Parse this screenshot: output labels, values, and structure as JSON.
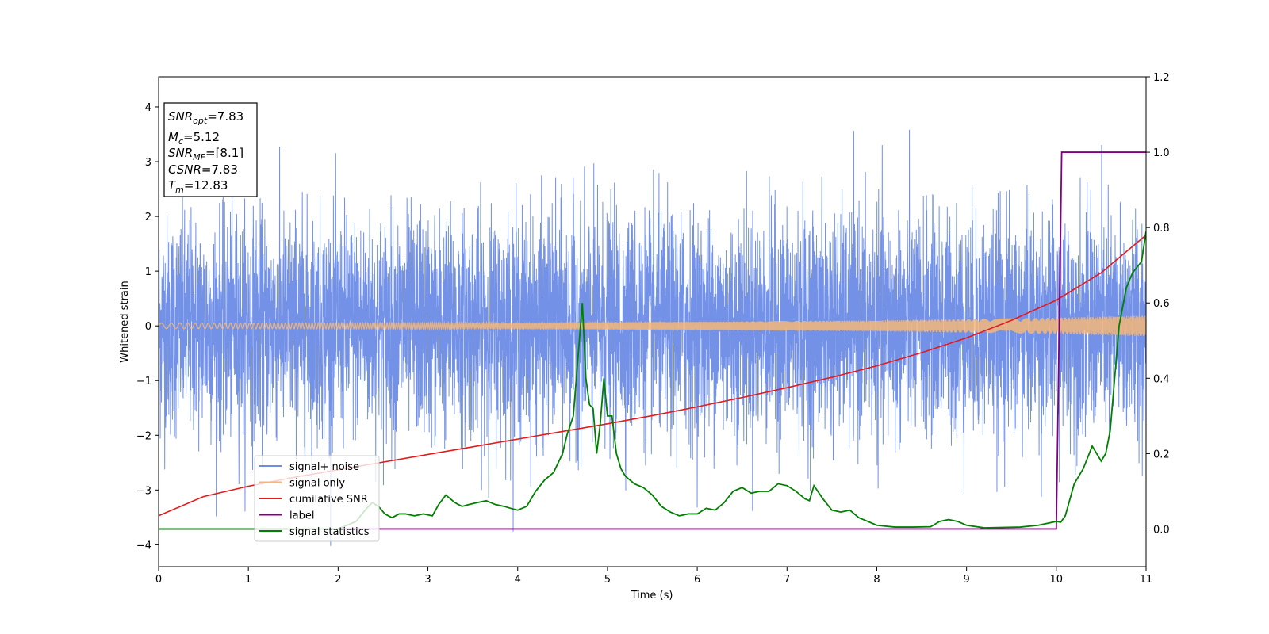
{
  "chart_data": {
    "type": "line",
    "title": "",
    "xlabel": "Time (s)",
    "ylabel": "Whitened strain",
    "y2label": "",
    "xlim": [
      0,
      11
    ],
    "ylim": [
      -4.4,
      4.55
    ],
    "y2lim": [
      -0.1,
      1.2
    ],
    "xticks": [
      0,
      1,
      2,
      3,
      4,
      5,
      6,
      7,
      8,
      9,
      10,
      11
    ],
    "yticks": [
      -4,
      -3,
      -2,
      -1,
      0,
      1,
      2,
      3,
      4
    ],
    "y2ticks": [
      0.0,
      0.2,
      0.4,
      0.6,
      0.8,
      1.0,
      1.2
    ],
    "xtick_labels": [
      "0",
      "1",
      "2",
      "3",
      "4",
      "5",
      "6",
      "7",
      "8",
      "9",
      "10",
      "11"
    ],
    "ytick_labels": [
      "−4",
      "−3",
      "−2",
      "−1",
      "0",
      "1",
      "2",
      "3",
      "4"
    ],
    "y2tick_labels": [
      "0.0",
      "0.2",
      "0.4",
      "0.6",
      "0.8",
      "1.0",
      "1.2"
    ],
    "grid": false,
    "legend_placement": "lower-left",
    "series": [
      {
        "name": "signal+ noise",
        "axis": "left",
        "color": "#6c8ce6",
        "description_values": {
          "std": 1.0,
          "peak_max": 4.17,
          "peak_min": -4.02
        }
      },
      {
        "name": "signal only",
        "axis": "left",
        "color": "#f5b679",
        "envelope_x": [
          0,
          2,
          4,
          6,
          8,
          10,
          11
        ],
        "envelope_amp": [
          0.05,
          0.055,
          0.06,
          0.075,
          0.1,
          0.15,
          0.19
        ]
      },
      {
        "name": "cumilative SNR",
        "axis": "left",
        "color": "#e41a1c",
        "x": [
          0,
          0.5,
          1,
          1.5,
          2,
          2.5,
          3,
          3.5,
          4,
          4.5,
          5,
          5.5,
          6,
          6.5,
          7,
          7.5,
          8,
          8.5,
          9,
          9.5,
          10,
          10.5,
          11
        ],
        "y": [
          -3.47,
          -3.12,
          -2.93,
          -2.77,
          -2.63,
          -2.49,
          -2.35,
          -2.21,
          -2.07,
          -1.93,
          -1.79,
          -1.64,
          -1.48,
          -1.31,
          -1.13,
          -0.94,
          -0.73,
          -0.49,
          -0.22,
          0.1,
          0.47,
          0.97,
          1.66
        ]
      },
      {
        "name": "label",
        "axis": "right",
        "color": "#800080",
        "x": [
          0,
          10.0,
          10.06,
          11
        ],
        "y": [
          0.0,
          0.0,
          1.0,
          1.0
        ]
      },
      {
        "name": "signal statistics",
        "axis": "right",
        "color": "#008000",
        "x": [
          0,
          2.0,
          2.1,
          2.2,
          2.3,
          2.38,
          2.45,
          2.52,
          2.6,
          2.68,
          2.75,
          2.85,
          2.95,
          3.05,
          3.12,
          3.2,
          3.3,
          3.38,
          3.46,
          3.55,
          3.65,
          3.75,
          3.85,
          3.92,
          4.0,
          4.1,
          4.2,
          4.3,
          4.4,
          4.5,
          4.55,
          4.62,
          4.68,
          4.72,
          4.76,
          4.8,
          4.84,
          4.88,
          4.92,
          4.96,
          5.0,
          5.05,
          5.1,
          5.15,
          5.2,
          5.3,
          5.4,
          5.5,
          5.6,
          5.7,
          5.8,
          5.9,
          6.0,
          6.1,
          6.2,
          6.3,
          6.4,
          6.5,
          6.6,
          6.7,
          6.8,
          6.9,
          7.0,
          7.1,
          7.2,
          7.25,
          7.3,
          7.4,
          7.5,
          7.6,
          7.7,
          7.8,
          7.9,
          8.0,
          8.2,
          8.4,
          8.6,
          8.7,
          8.8,
          8.9,
          9.0,
          9.2,
          9.4,
          9.6,
          9.8,
          10.0,
          10.05,
          10.1,
          10.2,
          10.25,
          10.3,
          10.4,
          10.5,
          10.55,
          10.6,
          10.65,
          10.7,
          10.78,
          10.85,
          10.95,
          11.0
        ],
        "y": [
          0.0,
          0.0,
          0.01,
          0.02,
          0.05,
          0.07,
          0.06,
          0.04,
          0.03,
          0.04,
          0.04,
          0.035,
          0.04,
          0.035,
          0.065,
          0.09,
          0.07,
          0.06,
          0.065,
          0.07,
          0.075,
          0.065,
          0.06,
          0.055,
          0.05,
          0.06,
          0.1,
          0.13,
          0.15,
          0.2,
          0.25,
          0.3,
          0.48,
          0.6,
          0.4,
          0.33,
          0.32,
          0.2,
          0.28,
          0.4,
          0.3,
          0.3,
          0.2,
          0.16,
          0.14,
          0.12,
          0.11,
          0.09,
          0.06,
          0.045,
          0.035,
          0.04,
          0.04,
          0.055,
          0.05,
          0.07,
          0.1,
          0.11,
          0.095,
          0.1,
          0.1,
          0.12,
          0.115,
          0.1,
          0.08,
          0.075,
          0.115,
          0.08,
          0.05,
          0.045,
          0.05,
          0.03,
          0.02,
          0.01,
          0.005,
          0.005,
          0.006,
          0.02,
          0.025,
          0.02,
          0.01,
          0.003,
          0.004,
          0.005,
          0.01,
          0.02,
          0.018,
          0.035,
          0.12,
          0.14,
          0.16,
          0.22,
          0.18,
          0.2,
          0.26,
          0.4,
          0.54,
          0.64,
          0.68,
          0.71,
          0.79
        ]
      }
    ],
    "annotations_box": {
      "lines": [
        {
          "main": "SNR",
          "sub": "opt",
          "value": "=7.83"
        },
        {
          "main": "M",
          "sub": "c",
          "value": "=5.12"
        },
        {
          "main": "SNR",
          "sub": "MF",
          "value": "=[8.1]"
        },
        {
          "main": "CSNR",
          "sub": "",
          "value": "=7.83"
        },
        {
          "main": "T",
          "sub": "m",
          "value": "=12.83"
        }
      ]
    }
  }
}
